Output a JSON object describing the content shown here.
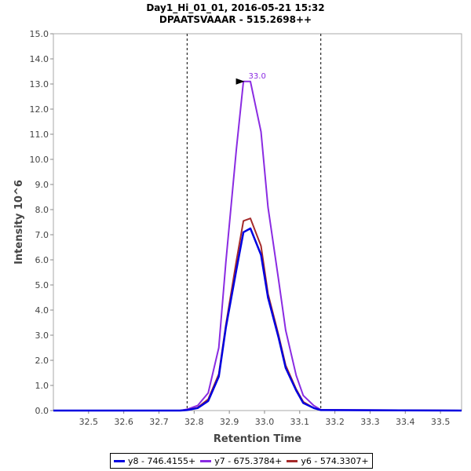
{
  "chart_data": {
    "type": "line",
    "title": "Day1_Hi_01_01, 2016-05-21 15:32",
    "subtitle": "DPAATSVAAAR - 515.2698++",
    "xlabel": "Retention Time",
    "ylabel": "Intensity 10^6",
    "xlim": [
      32.4,
      33.56
    ],
    "ylim": [
      0,
      15
    ],
    "xticks": [
      "32.5",
      "32.6",
      "32.7",
      "32.8",
      "32.9",
      "33.0",
      "33.1",
      "33.2",
      "33.3",
      "33.4",
      "33.5"
    ],
    "yticks": [
      "0.0",
      "1.0",
      "2.0",
      "3.0",
      "4.0",
      "5.0",
      "6.0",
      "7.0",
      "8.0",
      "9.0",
      "10.0",
      "11.0",
      "12.0",
      "13.0",
      "14.0",
      "15.0"
    ],
    "boundaries": [
      32.78,
      33.16
    ],
    "peak_annotation": {
      "text": "33.0",
      "x": 32.95,
      "y": 13.1
    },
    "series": [
      {
        "name": "y7 - 675.3784+",
        "color": "#8a2be2",
        "x": [
          32.4,
          32.76,
          32.78,
          32.81,
          32.84,
          32.87,
          32.89,
          32.92,
          32.94,
          32.96,
          32.99,
          33.01,
          33.04,
          33.06,
          33.09,
          33.11,
          33.14,
          33.16,
          33.56
        ],
        "y": [
          0,
          0,
          0.05,
          0.2,
          0.7,
          2.5,
          5.9,
          10.4,
          13.1,
          13.1,
          11.1,
          8.1,
          5.2,
          3.2,
          1.4,
          0.6,
          0.2,
          0.03,
          0
        ]
      },
      {
        "name": "y6 - 574.3307+",
        "color": "#a52a2a",
        "x": [
          32.4,
          32.76,
          32.78,
          32.81,
          32.84,
          32.87,
          32.89,
          32.92,
          32.94,
          32.96,
          32.99,
          33.01,
          33.04,
          33.06,
          33.09,
          33.11,
          33.14,
          33.16,
          33.56
        ],
        "y": [
          0,
          0,
          0.02,
          0.12,
          0.45,
          1.45,
          3.4,
          5.95,
          7.55,
          7.65,
          6.55,
          4.65,
          3.0,
          1.8,
          0.85,
          0.35,
          0.1,
          0.02,
          0
        ]
      },
      {
        "name": "y8 - 746.4155+",
        "color": "#0000e0",
        "x": [
          32.4,
          32.76,
          32.78,
          32.81,
          32.84,
          32.87,
          32.89,
          32.92,
          32.94,
          32.96,
          32.99,
          33.01,
          33.04,
          33.06,
          33.09,
          33.11,
          33.14,
          33.16,
          33.56
        ],
        "y": [
          0,
          0,
          0.02,
          0.1,
          0.38,
          1.35,
          3.3,
          5.6,
          7.1,
          7.25,
          6.2,
          4.5,
          2.9,
          1.7,
          0.8,
          0.3,
          0.1,
          0.02,
          0
        ]
      }
    ],
    "legend": [
      {
        "label": "y8 - 746.4155+",
        "color": "#0000e0"
      },
      {
        "label": "y7 - 675.3784+",
        "color": "#8a2be2"
      },
      {
        "label": "y6 - 574.3307+",
        "color": "#a52a2a"
      }
    ]
  }
}
